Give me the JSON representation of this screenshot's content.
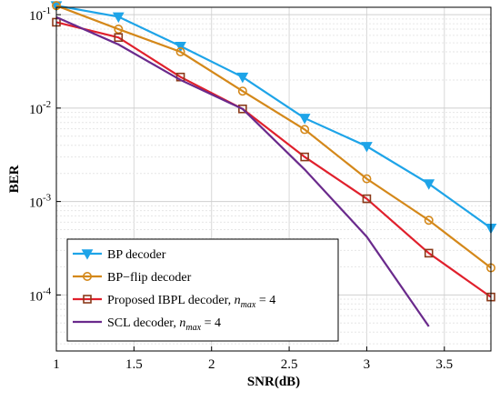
{
  "chart_data": {
    "type": "line",
    "title": "",
    "xlabel": "SNR(dB)",
    "ylabel": "BER",
    "xlim": [
      1,
      3.8
    ],
    "ylim": [
      3e-05,
      0.12
    ],
    "yscale": "log",
    "grid": true,
    "legend_position": "bottom-left",
    "x_ticks": [
      {
        "value": 1,
        "label": "1"
      },
      {
        "value": 1.5,
        "label": "1.5"
      },
      {
        "value": 2,
        "label": "2"
      },
      {
        "value": 2.5,
        "label": "2.5"
      },
      {
        "value": 3,
        "label": "3"
      },
      {
        "value": 3.5,
        "label": "3.5"
      }
    ],
    "y_ticks": [
      {
        "value": 0.1,
        "base": "10",
        "exp": "-1"
      },
      {
        "value": 0.01,
        "base": "10",
        "exp": "-2"
      },
      {
        "value": 0.001,
        "base": "10",
        "exp": "-3"
      },
      {
        "value": 0.0001,
        "base": "10",
        "exp": "-4"
      }
    ],
    "series": [
      {
        "name": "BP decoder",
        "legend_parts": [
          "BP decoder"
        ],
        "color": "#1ea4e8",
        "marker": "triangle-down",
        "x": [
          1,
          1.4,
          1.8,
          2.2,
          2.6,
          3.0,
          3.4,
          3.8
        ],
        "y": [
          0.125,
          0.095,
          0.046,
          0.0215,
          0.0078,
          0.0039,
          0.00155,
          0.00052
        ]
      },
      {
        "name": "BP−flip decoder",
        "legend_parts": [
          "BP−flip decoder"
        ],
        "color": "#d4881a",
        "marker": "circle",
        "x": [
          1,
          1.4,
          1.8,
          2.2,
          2.6,
          3.0,
          3.4,
          3.8
        ],
        "y": [
          0.125,
          0.07,
          0.04,
          0.0152,
          0.0059,
          0.00175,
          0.00063,
          0.000195
        ]
      },
      {
        "name": "Proposed IBPL decoder, n_max = 4",
        "legend_parts": [
          "Proposed IBPL decoder, ",
          "n",
          "max",
          " = 4"
        ],
        "color": "#e0202c",
        "marker_color": "#8b3a1a",
        "marker": "square",
        "x": [
          1,
          1.4,
          1.8,
          2.2,
          2.6,
          3.0,
          3.4,
          3.8
        ],
        "y": [
          0.083,
          0.057,
          0.0215,
          0.0098,
          0.003,
          0.00107,
          0.00028,
          9.5e-05
        ]
      },
      {
        "name": "SCL decoder, n_max = 4",
        "legend_parts": [
          "SCL decoder, ",
          "n",
          "max",
          " = 4"
        ],
        "color": "#6a2a8c",
        "marker": "none",
        "x": [
          1,
          1.4,
          1.8,
          2.2,
          2.6,
          3.0,
          3.4
        ],
        "y": [
          0.094,
          0.048,
          0.02,
          0.0098,
          0.0022,
          0.00042,
          4.6e-05
        ]
      }
    ]
  }
}
